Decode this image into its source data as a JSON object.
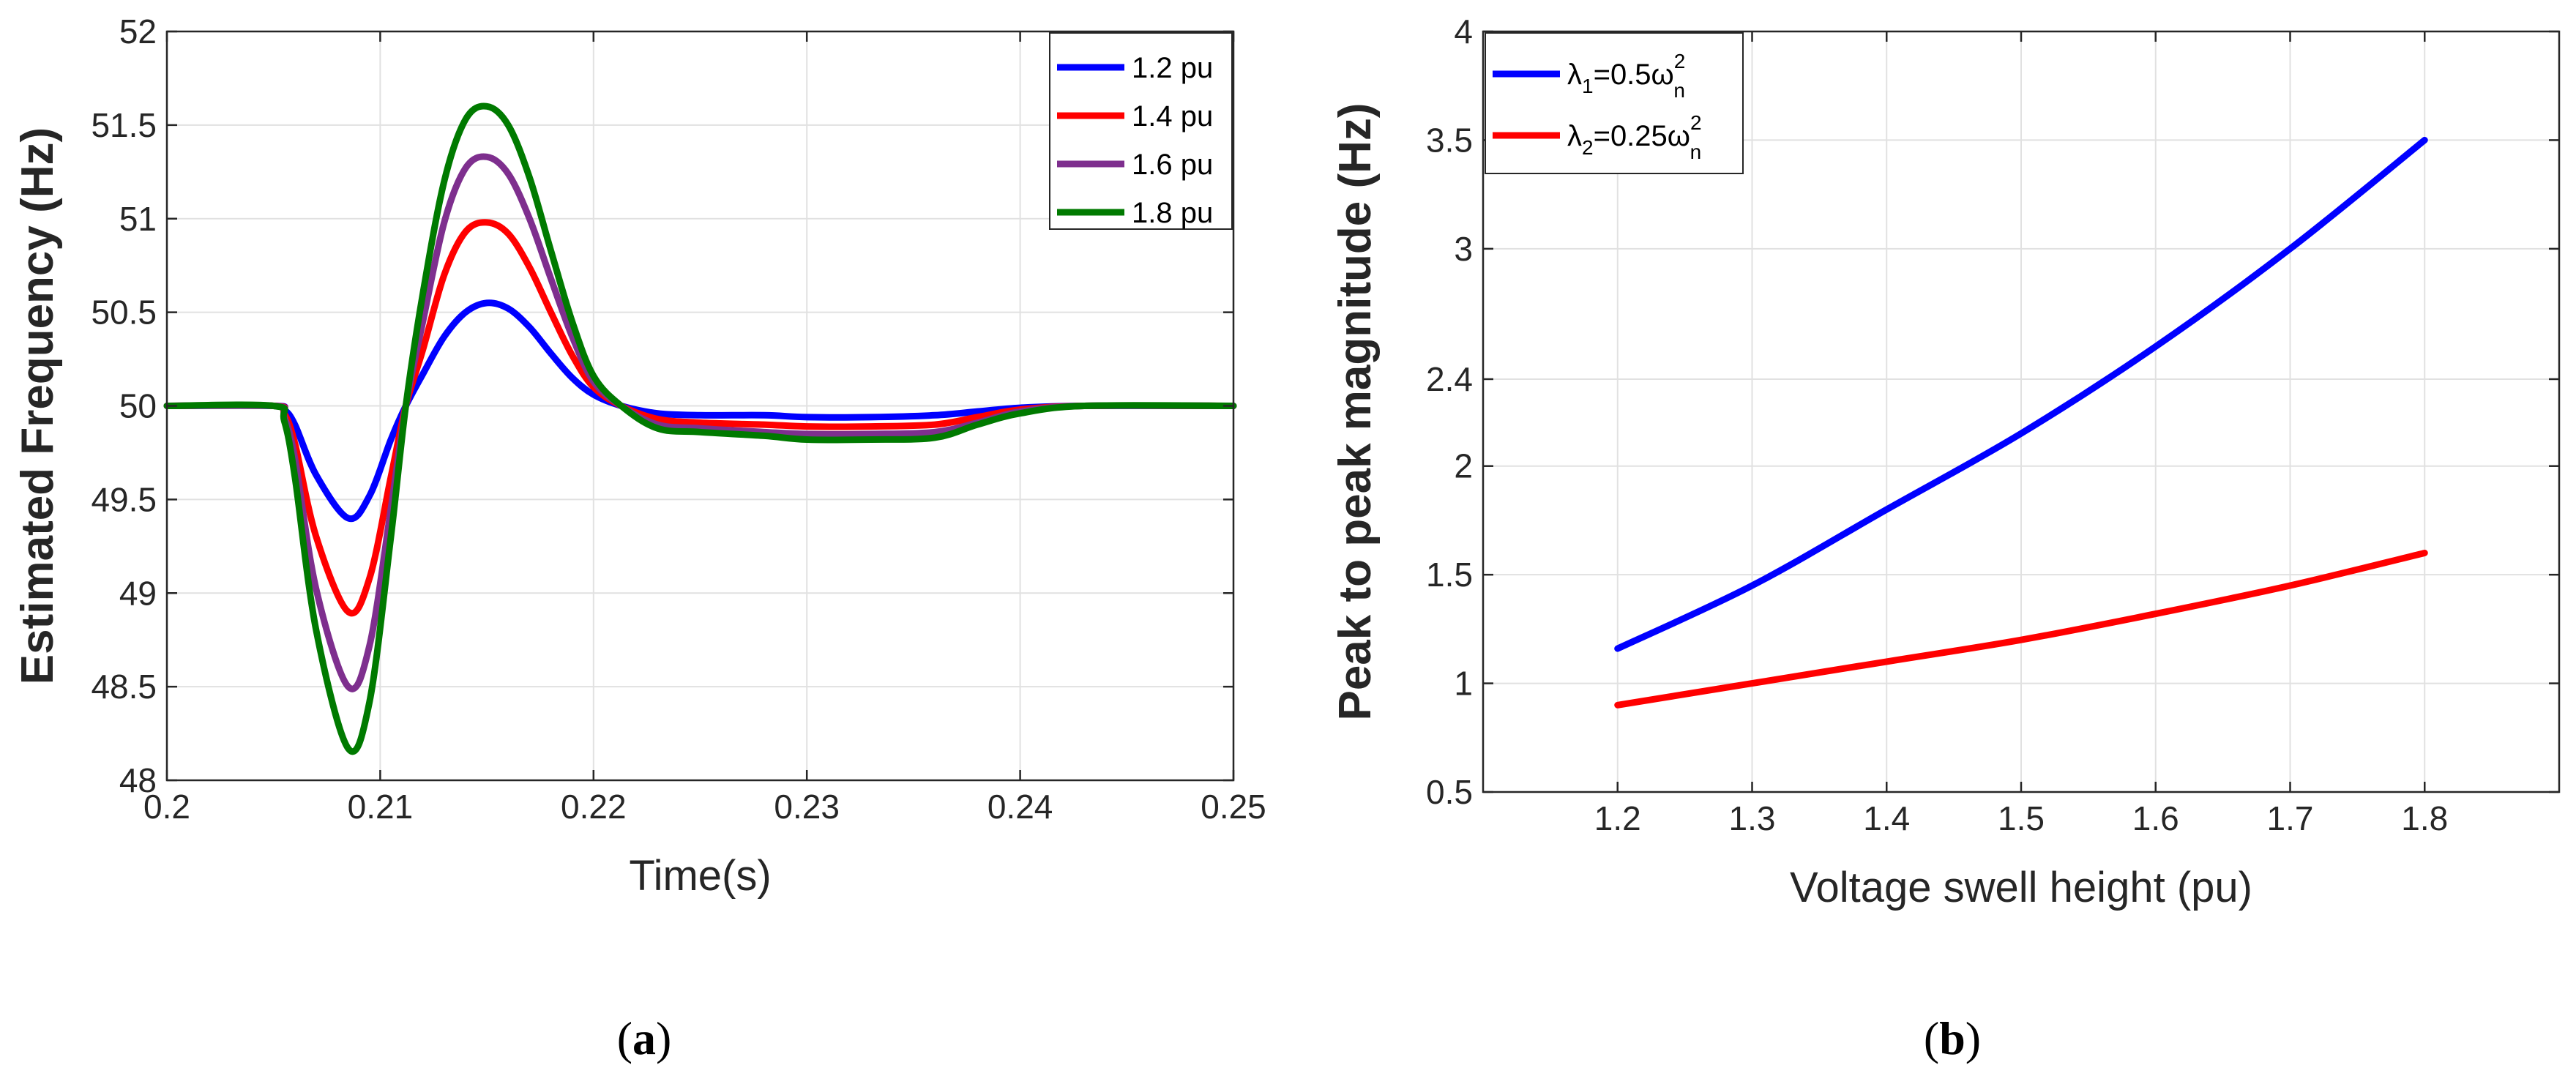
{
  "chart_data": [
    {
      "type": "line",
      "panel": "a",
      "caption": {
        "open": "(",
        "letter": "a",
        "close": ")"
      },
      "xlabel": "Time(s)",
      "ylabel": "Estimated Frequency (Hz)",
      "xlim": [
        0.2,
        0.25
      ],
      "ylim": [
        48,
        52
      ],
      "xticks": [
        0.2,
        0.21,
        0.22,
        0.23,
        0.24,
        0.25
      ],
      "xtick_labels": [
        "0.2",
        "0.21",
        "0.22",
        "0.23",
        "0.24",
        "0.25"
      ],
      "yticks": [
        48,
        48.5,
        49,
        49.5,
        50,
        50.5,
        51,
        51.5,
        52
      ],
      "ytick_labels": [
        "48",
        "48.5",
        "49",
        "49.5",
        "50",
        "50.5",
        "51",
        "51.5",
        "52"
      ],
      "grid": true,
      "legend_position": "top-right",
      "series": [
        {
          "name": "1.2 pu",
          "color": "#0000ff",
          "x": [
            0.2,
            0.205,
            0.2055,
            0.206,
            0.207,
            0.2085,
            0.2095,
            0.2105,
            0.2112,
            0.212,
            0.213,
            0.214,
            0.215,
            0.216,
            0.217,
            0.218,
            0.219,
            0.22,
            0.2213,
            0.223,
            0.225,
            0.228,
            0.23,
            0.233,
            0.236,
            0.238,
            0.24,
            0.243,
            0.25
          ],
          "y": [
            50,
            50,
            49.98,
            49.9,
            49.63,
            49.4,
            49.52,
            49.82,
            50.0,
            50.17,
            50.37,
            50.5,
            50.55,
            50.52,
            50.42,
            50.28,
            50.15,
            50.06,
            50.0,
            49.96,
            49.95,
            49.95,
            49.94,
            49.94,
            49.95,
            49.97,
            49.99,
            50,
            50
          ]
        },
        {
          "name": "1.4 pu",
          "color": "#ff0000",
          "x": [
            0.2,
            0.205,
            0.2055,
            0.206,
            0.207,
            0.2085,
            0.2095,
            0.2105,
            0.2112,
            0.212,
            0.213,
            0.214,
            0.215,
            0.216,
            0.217,
            0.218,
            0.219,
            0.22,
            0.2213,
            0.223,
            0.225,
            0.228,
            0.23,
            0.233,
            0.236,
            0.238,
            0.24,
            0.243,
            0.25
          ],
          "y": [
            50,
            50,
            49.96,
            49.8,
            49.3,
            48.9,
            49.08,
            49.62,
            50.0,
            50.3,
            50.7,
            50.93,
            50.98,
            50.92,
            50.74,
            50.5,
            50.27,
            50.1,
            50.0,
            49.93,
            49.91,
            49.9,
            49.89,
            49.89,
            49.9,
            49.94,
            49.98,
            50,
            50
          ]
        },
        {
          "name": "1.6 pu",
          "color": "#7e2f8e",
          "x": [
            0.2,
            0.205,
            0.2055,
            0.206,
            0.207,
            0.2085,
            0.2095,
            0.2105,
            0.2112,
            0.212,
            0.213,
            0.214,
            0.215,
            0.216,
            0.217,
            0.218,
            0.219,
            0.22,
            0.2213,
            0.223,
            0.225,
            0.228,
            0.23,
            0.233,
            0.236,
            0.238,
            0.24,
            0.243,
            0.25
          ],
          "y": [
            50,
            50,
            49.94,
            49.72,
            49.02,
            48.5,
            48.72,
            49.45,
            50.0,
            50.45,
            50.98,
            51.27,
            51.33,
            51.24,
            51.0,
            50.68,
            50.37,
            50.13,
            50.0,
            49.9,
            49.88,
            49.86,
            49.85,
            49.85,
            49.86,
            49.91,
            49.97,
            50,
            50
          ]
        },
        {
          "name": "1.8 pu",
          "color": "#007a00",
          "x": [
            0.2,
            0.205,
            0.2055,
            0.206,
            0.207,
            0.2085,
            0.2095,
            0.2105,
            0.2112,
            0.212,
            0.213,
            0.214,
            0.215,
            0.216,
            0.217,
            0.218,
            0.219,
            0.22,
            0.2213,
            0.223,
            0.225,
            0.228,
            0.23,
            0.233,
            0.236,
            0.238,
            0.24,
            0.243,
            0.25
          ],
          "y": [
            50,
            50,
            49.92,
            49.62,
            48.8,
            48.17,
            48.42,
            49.3,
            50.0,
            50.6,
            51.2,
            51.53,
            51.6,
            51.5,
            51.22,
            50.83,
            50.45,
            50.16,
            50.0,
            49.88,
            49.86,
            49.84,
            49.82,
            49.82,
            49.83,
            49.9,
            49.96,
            50,
            50
          ]
        }
      ]
    },
    {
      "type": "line",
      "panel": "b",
      "caption": {
        "open": "(",
        "letter": "b",
        "close": ")"
      },
      "xlabel": "Voltage swell height (pu)",
      "ylabel": "Peak to peak magnitude (Hz)",
      "xlim": [
        1.1,
        1.9
      ],
      "ylim": [
        0.5,
        4
      ],
      "xticks": [
        1.2,
        1.3,
        1.4,
        1.5,
        1.6,
        1.7,
        1.8
      ],
      "xtick_labels": [
        "1.2",
        "1.3",
        "1.4",
        "1.5",
        "1.6",
        "1.7",
        "1.8"
      ],
      "yticks": [
        0.5,
        1,
        1.5,
        2,
        2.4,
        3,
        3.5,
        4
      ],
      "ytick_labels": [
        "0.5",
        "1",
        "1.5",
        "2",
        "2.4",
        "3",
        "3.5",
        "4"
      ],
      "grid": true,
      "legend_position": "top-left",
      "series": [
        {
          "name": "λ1=0.5ωn2",
          "label": {
            "lambda": "λ",
            "sub": "1",
            "mid": "=0.5ω",
            "sup": "2",
            "sub2": "n"
          },
          "color": "#0000ff",
          "x": [
            1.2,
            1.3,
            1.4,
            1.5,
            1.6,
            1.7,
            1.8
          ],
          "y": [
            1.16,
            1.45,
            1.8,
            2.15,
            2.55,
            3.0,
            3.5
          ]
        },
        {
          "name": "λ2=0.25ωn2",
          "label": {
            "lambda": "λ",
            "sub": "2",
            "mid": "=0.25ω",
            "sup": "2",
            "sub2": "n"
          },
          "color": "#ff0000",
          "x": [
            1.2,
            1.3,
            1.4,
            1.5,
            1.6,
            1.7,
            1.8
          ],
          "y": [
            0.9,
            1.0,
            1.1,
            1.2,
            1.32,
            1.45,
            1.6
          ]
        }
      ]
    }
  ]
}
